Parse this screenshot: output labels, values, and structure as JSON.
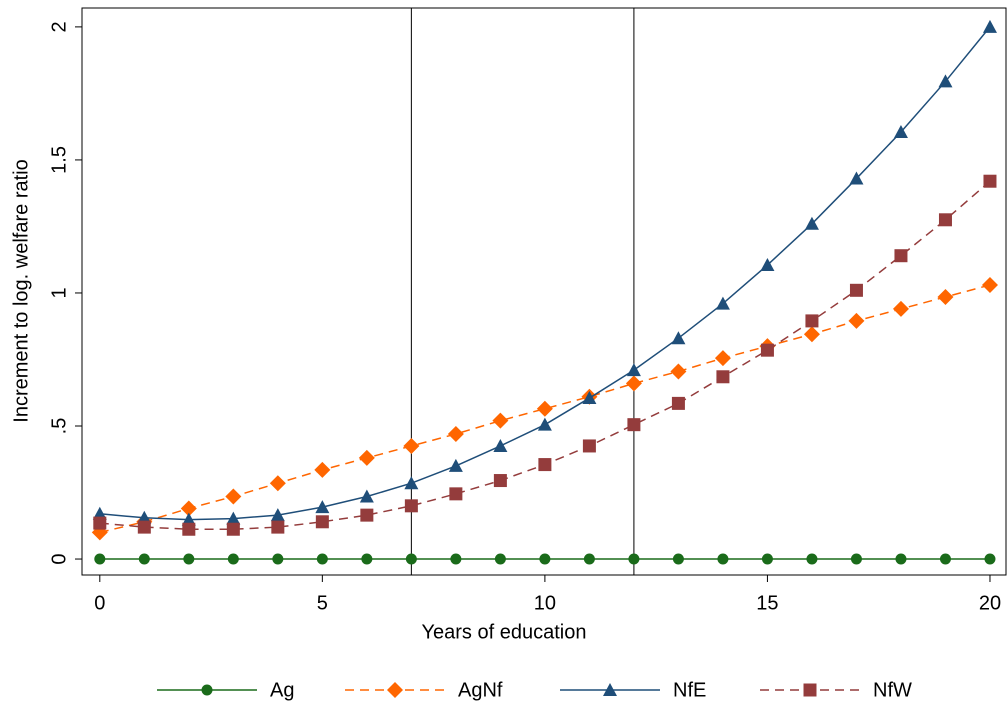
{
  "chart_data": {
    "type": "line",
    "x_label": "Years of education",
    "y_label": "Increment to log. welfare ratio",
    "x": [
      0,
      1,
      2,
      3,
      4,
      5,
      6,
      7,
      8,
      9,
      10,
      11,
      12,
      13,
      14,
      15,
      16,
      17,
      18,
      19,
      20
    ],
    "series": [
      {
        "name": "Ag",
        "color": "#1a6b1a",
        "marker": "circle",
        "dashed": false,
        "values": [
          0,
          0,
          0,
          0,
          0,
          0,
          0,
          0,
          0,
          0,
          0,
          0,
          0,
          0,
          0,
          0,
          0,
          0,
          0,
          0,
          0
        ]
      },
      {
        "name": "AgNf",
        "color": "#ff6600",
        "marker": "diamond",
        "dashed": true,
        "values": [
          0.1,
          0.14,
          0.19,
          0.235,
          0.285,
          0.335,
          0.38,
          0.425,
          0.47,
          0.52,
          0.565,
          0.61,
          0.66,
          0.705,
          0.755,
          0.8,
          0.845,
          0.895,
          0.94,
          0.985,
          1.03
        ]
      },
      {
        "name": "NfE",
        "color": "#1f4e79",
        "marker": "triangle",
        "dashed": false,
        "values": [
          0.17,
          0.155,
          0.148,
          0.152,
          0.165,
          0.195,
          0.235,
          0.285,
          0.35,
          0.425,
          0.505,
          0.605,
          0.71,
          0.83,
          0.96,
          1.105,
          1.26,
          1.43,
          1.605,
          1.795,
          2.0
        ]
      },
      {
        "name": "NfW",
        "color": "#943c3c",
        "marker": "square",
        "dashed": true,
        "values": [
          0.135,
          0.12,
          0.112,
          0.112,
          0.12,
          0.14,
          0.165,
          0.2,
          0.245,
          0.295,
          0.355,
          0.425,
          0.505,
          0.585,
          0.685,
          0.785,
          0.895,
          1.01,
          1.14,
          1.275,
          1.42
        ]
      }
    ],
    "xlim": [
      -0.4,
      20.36
    ],
    "ylim": [
      -0.06,
      2.071
    ],
    "xticks": [
      0,
      5,
      10,
      15,
      20
    ],
    "yticks": [
      0,
      {
        "value": 0.5,
        "label": ".5"
      },
      1,
      1.5,
      2
    ],
    "xlines": [
      7,
      12
    ]
  }
}
